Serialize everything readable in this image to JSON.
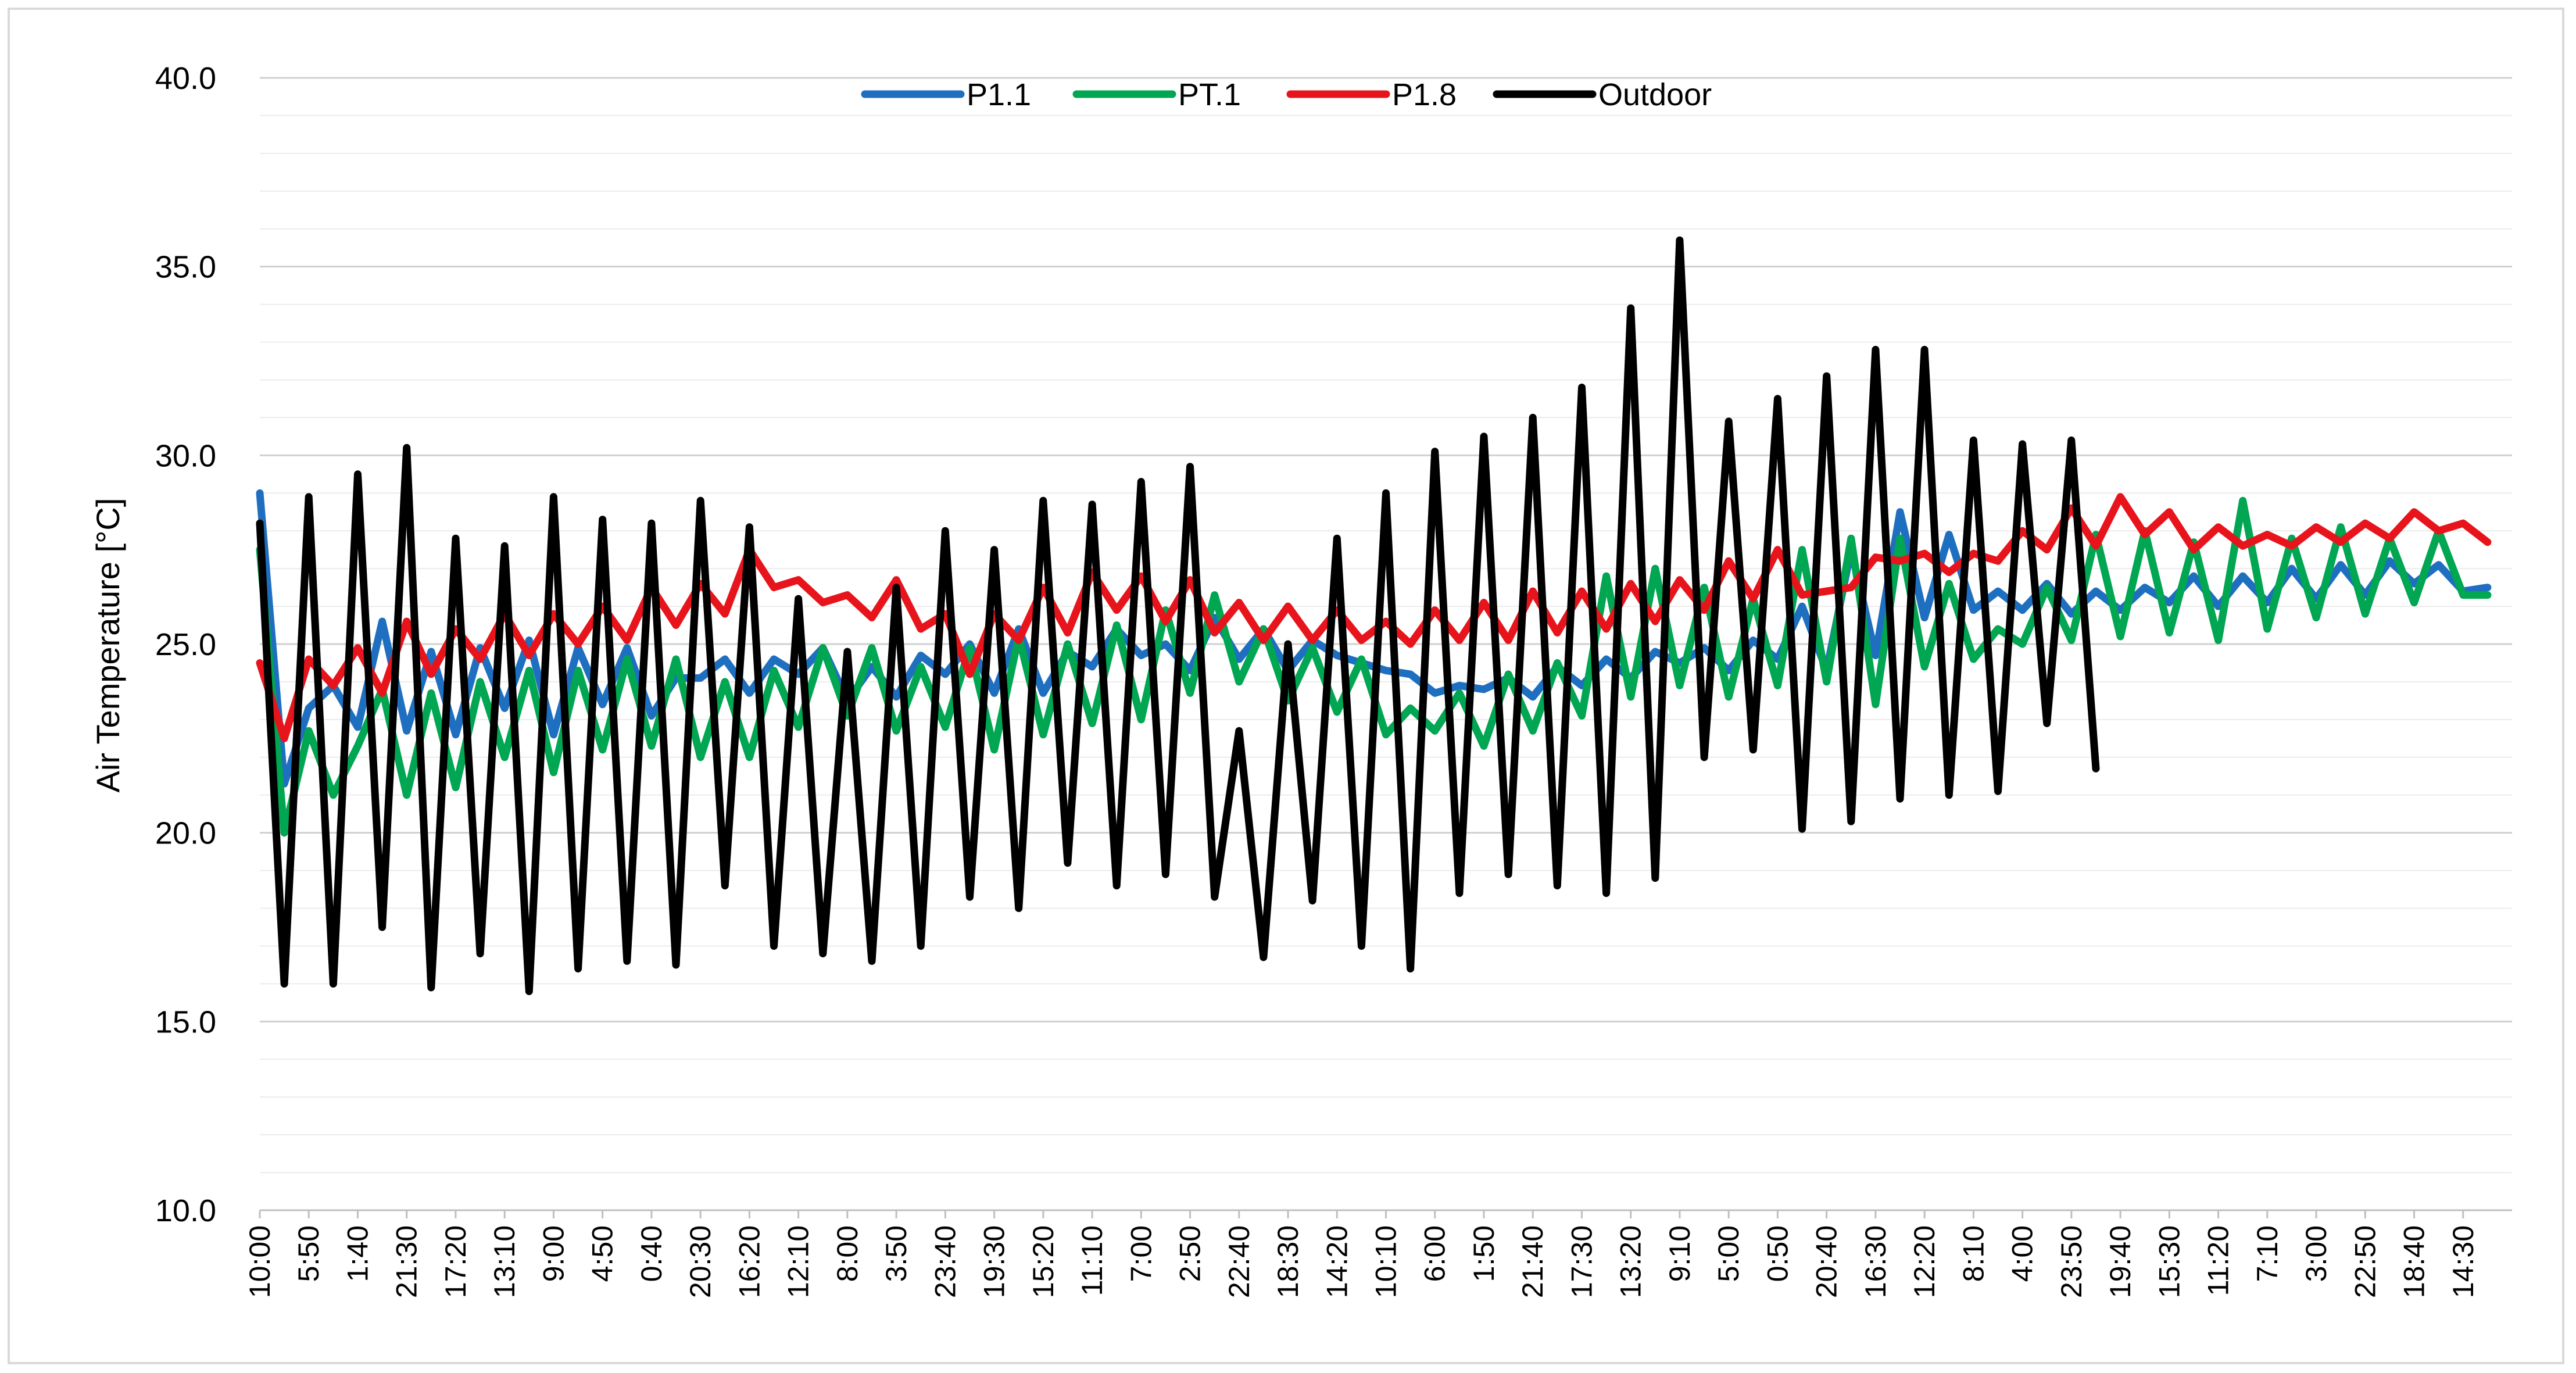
{
  "chart_data": {
    "type": "line",
    "title": "",
    "xlabel": "",
    "ylabel": "Air Temperature [°C]",
    "ylim": [
      10,
      40
    ],
    "yticks": [
      "40.0",
      "35.0",
      "30.0",
      "25.0",
      "20.0",
      "15.0",
      "10.0"
    ],
    "ytick_values": [
      40,
      35,
      30,
      25,
      20,
      15,
      10
    ],
    "grid": true,
    "legend_position": "top-center",
    "x_tick_labels": [
      "10:00",
      "5:50",
      "1:40",
      "21:30",
      "17:20",
      "13:10",
      "9:00",
      "4:50",
      "0:40",
      "20:30",
      "16:20",
      "12:10",
      "8:00",
      "3:50",
      "23:40",
      "19:30",
      "15:20",
      "11:10",
      "7:00",
      "2:50",
      "22:40",
      "18:30",
      "14:20",
      "10:10",
      "6:00",
      "1:50",
      "21:40",
      "17:30",
      "13:20",
      "9:10",
      "5:00",
      "0:50",
      "20:40",
      "16:30",
      "12:20",
      "8:10",
      "4:00",
      "23:50",
      "19:40",
      "15:30",
      "11:20",
      "7:10",
      "3:00",
      "22:50",
      "18:40",
      "14:30"
    ],
    "x_note": "x axis = ordinal time step, one tick every 20 hours 10 minutes (146 ten-minute samples); sampled values listed at every 0.5 tick interval",
    "series": [
      {
        "name": "P1.1",
        "color": "#1f6fc0",
        "values": [
          29.0,
          21.3,
          23.3,
          23.9,
          22.8,
          25.6,
          22.7,
          24.8,
          22.6,
          24.9,
          23.3,
          25.1,
          22.6,
          24.9,
          23.4,
          24.9,
          23.1,
          24.1,
          24.1,
          24.6,
          23.7,
          24.6,
          24.2,
          24.9,
          23.5,
          24.4,
          23.6,
          24.7,
          24.2,
          25.0,
          23.7,
          25.4,
          23.7,
          24.8,
          24.4,
          25.4,
          24.7,
          25.0,
          24.3,
          25.7,
          24.6,
          25.4,
          24.3,
          25.1,
          24.7,
          24.5,
          24.3,
          24.2,
          23.7,
          23.9,
          23.8,
          24.1,
          23.6,
          24.4,
          23.9,
          24.6,
          24.1,
          24.8,
          24.5,
          24.9,
          24.3,
          25.1,
          24.6,
          26.0,
          24.3,
          27.5,
          24.7,
          28.5,
          25.7,
          27.9,
          25.9,
          26.4,
          25.9,
          26.6,
          25.8,
          26.4,
          25.9,
          26.5,
          26.1,
          26.8,
          26.0,
          26.8,
          26.1,
          27.0,
          26.2,
          27.1,
          26.3,
          27.2,
          26.6,
          27.1,
          26.4,
          26.5
        ]
      },
      {
        "name": "PT.1",
        "color": "#00a651",
        "values": [
          27.5,
          20.0,
          22.7,
          21.0,
          22.3,
          23.8,
          21.0,
          23.7,
          21.2,
          24.0,
          22.0,
          24.3,
          21.6,
          24.3,
          22.2,
          24.6,
          22.3,
          24.6,
          22.0,
          24.0,
          22.0,
          24.3,
          22.8,
          24.9,
          23.1,
          24.9,
          22.7,
          24.4,
          22.8,
          24.9,
          22.2,
          25.2,
          22.6,
          25.0,
          22.9,
          25.5,
          23.0,
          25.9,
          23.7,
          26.3,
          24.0,
          25.4,
          23.5,
          24.9,
          23.2,
          24.6,
          22.6,
          23.3,
          22.7,
          23.7,
          22.3,
          24.2,
          22.7,
          24.5,
          23.1,
          26.8,
          23.6,
          27.0,
          23.9,
          26.5,
          23.6,
          26.2,
          23.9,
          27.5,
          24.0,
          27.8,
          23.4,
          27.8,
          24.4,
          26.6,
          24.6,
          25.4,
          25.0,
          26.5,
          25.1,
          27.9,
          25.2,
          28.0,
          25.3,
          27.7,
          25.1,
          28.8,
          25.4,
          27.8,
          25.7,
          28.1,
          25.8,
          27.8,
          26.1,
          28.0,
          26.3,
          26.3
        ]
      },
      {
        "name": "P1.8",
        "color": "#e8141c",
        "values": [
          24.5,
          22.5,
          24.6,
          23.9,
          24.9,
          23.7,
          25.6,
          24.2,
          25.4,
          24.6,
          25.8,
          24.7,
          25.8,
          25.0,
          26.0,
          25.1,
          26.5,
          25.5,
          26.6,
          25.8,
          27.5,
          26.5,
          26.7,
          26.1,
          26.3,
          25.7,
          26.7,
          25.4,
          25.8,
          24.2,
          25.8,
          25.1,
          26.5,
          25.3,
          26.9,
          25.9,
          26.8,
          25.6,
          26.7,
          25.3,
          26.1,
          25.1,
          26.0,
          25.1,
          25.9,
          25.1,
          25.6,
          25.0,
          25.9,
          25.1,
          26.1,
          25.1,
          26.4,
          25.3,
          26.4,
          25.4,
          26.6,
          25.6,
          26.7,
          25.9,
          27.2,
          26.2,
          27.5,
          26.3,
          26.4,
          26.5,
          27.3,
          27.2,
          27.4,
          26.9,
          27.4,
          27.2,
          28.0,
          27.5,
          28.6,
          27.6,
          28.9,
          27.9,
          28.5,
          27.5,
          28.1,
          27.6,
          27.9,
          27.6,
          28.1,
          27.7,
          28.2,
          27.8,
          28.5,
          28.0,
          28.2,
          27.7
        ]
      },
      {
        "name": "Outdoor",
        "color": "#000000",
        "values": [
          28.2,
          16.0,
          28.9,
          16.0,
          29.5,
          17.5,
          30.2,
          15.9,
          27.8,
          16.8,
          27.6,
          15.8,
          28.9,
          16.4,
          28.3,
          16.6,
          28.2,
          16.5,
          28.8,
          18.6,
          28.1,
          17.0,
          26.2,
          16.8,
          24.8,
          16.6,
          26.5,
          17.0,
          28.0,
          18.3,
          27.5,
          18.0,
          28.8,
          19.2,
          28.7,
          18.6,
          29.3,
          18.9,
          29.7,
          18.3,
          22.7,
          16.7,
          25.0,
          18.2,
          27.8,
          17.0,
          29.0,
          16.4,
          30.1,
          18.4,
          30.5,
          18.9,
          31.0,
          18.6,
          31.8,
          18.4,
          33.9,
          18.8,
          35.7,
          22.0,
          30.9,
          22.2,
          31.5,
          20.1,
          32.1,
          20.3,
          32.8,
          20.9,
          32.8,
          21.0,
          30.4,
          21.1,
          30.3,
          22.9,
          30.4,
          21.7
        ]
      }
    ]
  }
}
